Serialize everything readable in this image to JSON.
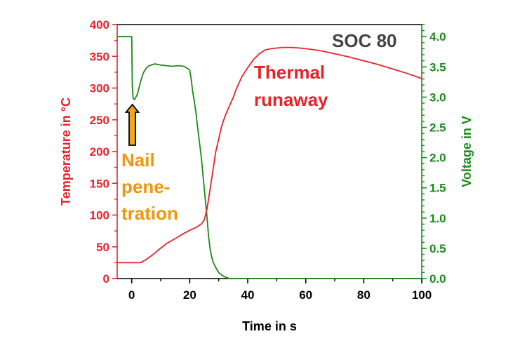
{
  "colors": {
    "temperature": "#e8222a",
    "voltage": "#1a8a1a",
    "axis_x": "#000000",
    "annotation_soc": "#444444",
    "annotation_nail": "#f0960a",
    "arrow_fill": "#f0a81e",
    "arrow_stroke": "#000000"
  },
  "chart_data": {
    "type": "line",
    "title": "",
    "xlabel": "Time in s",
    "ylabel_left": "Temperature in °C",
    "ylabel_right": "Voltage in V",
    "xlim": [
      -5,
      100
    ],
    "ylim_left": [
      0,
      400
    ],
    "ylim_right": [
      0,
      4.2
    ],
    "x_ticks": [
      0,
      20,
      40,
      60,
      80,
      100
    ],
    "y_left_ticks": [
      0,
      50,
      100,
      150,
      200,
      250,
      300,
      350,
      400
    ],
    "y_right_ticks": [
      "0.0",
      "0.5",
      "1.0",
      "1.5",
      "2.0",
      "2.5",
      "3.0",
      "3.5",
      "4.0"
    ],
    "grid": false,
    "series": [
      {
        "name": "Temperature",
        "axis": "left",
        "x": [
          -5,
          3,
          5,
          8,
          10,
          12,
          15,
          18,
          20,
          22,
          24,
          25,
          26,
          27,
          28,
          29,
          30,
          31,
          32,
          33,
          34,
          35,
          36,
          37,
          38,
          40,
          42,
          44,
          46,
          48,
          50,
          52,
          55,
          58,
          60,
          65,
          70,
          75,
          80,
          85,
          90,
          95,
          100
        ],
        "values": [
          25,
          25,
          30,
          40,
          48,
          55,
          63,
          71,
          76,
          80,
          86,
          92,
          110,
          140,
          170,
          200,
          220,
          240,
          253,
          265,
          275,
          285,
          298,
          308,
          318,
          332,
          345,
          354,
          360,
          362,
          363,
          364,
          364,
          363,
          362,
          359,
          354,
          349,
          343,
          337,
          330,
          323,
          315
        ]
      },
      {
        "name": "Voltage",
        "axis": "right",
        "x": [
          -5,
          0,
          0.2,
          0.5,
          1,
          2,
          3,
          4,
          5,
          6,
          8,
          10,
          12,
          14,
          16,
          18,
          20,
          20.5,
          21,
          22,
          23,
          24,
          25,
          26,
          26.5,
          27,
          27.5,
          28,
          29,
          30,
          31,
          32,
          33,
          34,
          35,
          100
        ],
        "values": [
          4.0,
          4.0,
          3.2,
          2.98,
          2.96,
          3.05,
          3.25,
          3.4,
          3.48,
          3.52,
          3.55,
          3.53,
          3.52,
          3.51,
          3.52,
          3.51,
          3.45,
          3.3,
          3.1,
          2.8,
          2.4,
          2.0,
          1.5,
          1.0,
          0.7,
          0.5,
          0.38,
          0.28,
          0.18,
          0.1,
          0.06,
          0.03,
          0.01,
          0.0,
          0.0,
          0.0
        ]
      }
    ],
    "annotations": {
      "soc": "SOC 80",
      "thermal_line1": "Thermal",
      "thermal_line2": "runaway",
      "nail_line1": "Nail",
      "nail_line2": "pene-",
      "nail_line3": "tration"
    }
  }
}
